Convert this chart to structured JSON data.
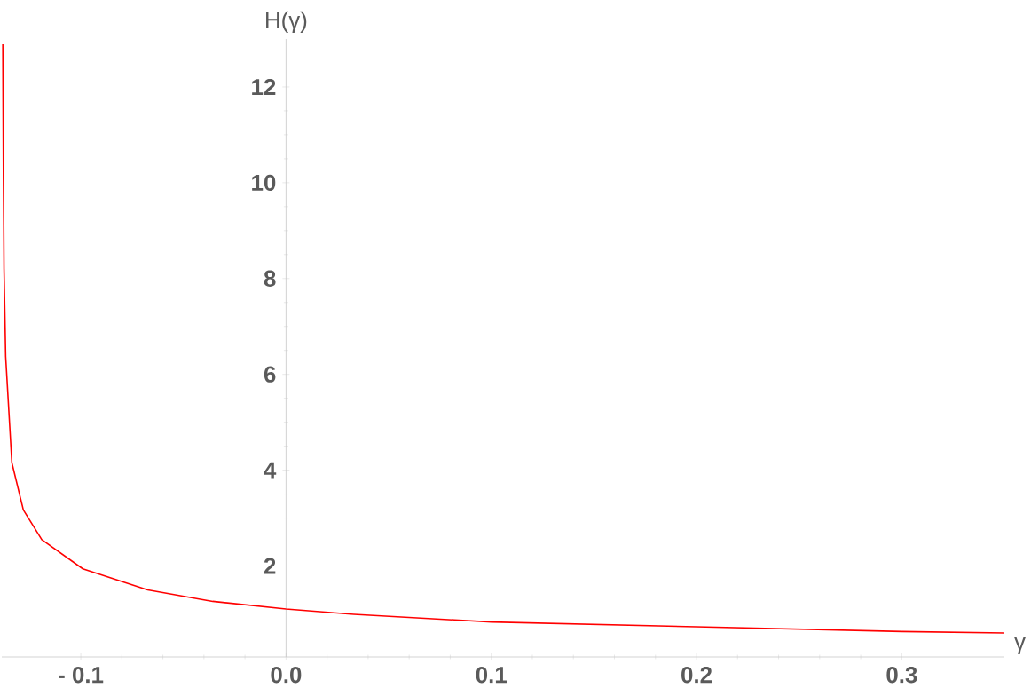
{
  "chart_data": {
    "type": "line",
    "xlabel": "γ",
    "ylabel": "H(γ)",
    "x": [
      -0.138,
      -0.1377,
      -0.1374,
      -0.1366,
      -0.1336,
      -0.128,
      -0.119,
      -0.099,
      -0.0674,
      -0.0357,
      0,
      0.033,
      0.1,
      0.2,
      0.3,
      0.35
    ],
    "series": [
      {
        "color": "#ff0000",
        "values": [
          12.9,
          10.07,
          8.2,
          6.37,
          4.16,
          3.17,
          2.55,
          1.94,
          1.5,
          1.26,
          1.1,
          0.99,
          0.83,
          0.73,
          0.63,
          0.6
        ]
      }
    ],
    "xlim": [
      -0.1385,
      0.35
    ],
    "ylim": [
      0.1,
      13
    ],
    "xticks": [
      {
        "value": -0.1,
        "label": "- 0.1"
      },
      {
        "value": 0,
        "label": "0.0"
      },
      0.1,
      0.2,
      0.3
    ],
    "yticks": [
      2,
      4,
      6,
      8,
      10,
      12
    ],
    "grid": false,
    "legend": false,
    "marker": "none",
    "line_style": "solid"
  }
}
